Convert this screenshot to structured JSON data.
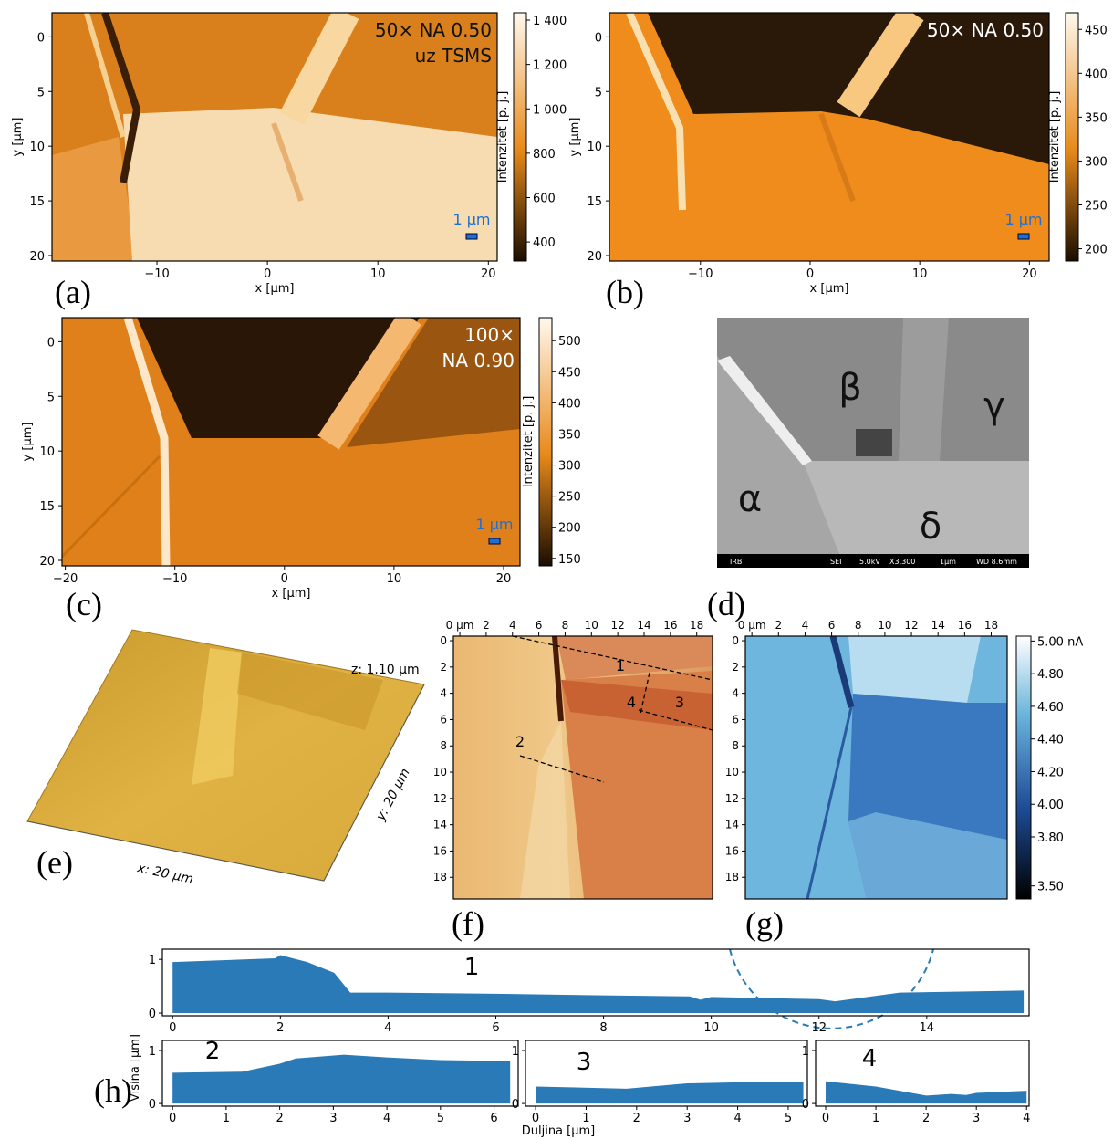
{
  "chart_data": [
    {
      "type": "heatmap",
      "panel": "(a)",
      "xlabel": "x [µm]",
      "ylabel": "y [µm]",
      "colorbar_label": "Intenzitet [p. j.]",
      "annotations": [
        "50× NA 0.50",
        "uz TSMS"
      ],
      "scale_bar": "1 µm",
      "xlim": [
        -19.5,
        20.8
      ],
      "ylim": [
        -2.2,
        20.5
      ],
      "xticks": [
        {
          "value": -10,
          "label": "−10"
        },
        0,
        10,
        20
      ],
      "yticks": [
        0,
        5,
        10,
        15,
        20
      ],
      "clim": [
        314,
        1433
      ],
      "cticks": [
        {
          "value": 1400,
          "label": "1 400"
        },
        {
          "value": 1200,
          "label": "1 200"
        },
        {
          "value": 1000,
          "label": "1 000"
        },
        800,
        600,
        400
      ]
    },
    {
      "type": "heatmap",
      "panel": "(b)",
      "xlabel": "x [µm]",
      "ylabel": "y [µm]",
      "colorbar_label": "Intenzitet [p. j.]",
      "annotations": [
        "50× NA 0.50"
      ],
      "scale_bar": "1 µm",
      "xlim": [
        -18.3,
        21.8
      ],
      "ylim": [
        -2.2,
        20.5
      ],
      "xticks": [
        {
          "value": -10,
          "label": "−10"
        },
        0,
        10,
        20
      ],
      "yticks": [
        0,
        5,
        10,
        15,
        20
      ],
      "clim": [
        186,
        469
      ],
      "cticks": [
        450,
        400,
        350,
        300,
        250,
        200
      ]
    },
    {
      "type": "heatmap",
      "panel": "(c)",
      "xlabel": "x [µm]",
      "ylabel": "y [µm]",
      "colorbar_label": "Intenzitet [p. j.]",
      "annotations": [
        "100×",
        "NA 0.90"
      ],
      "scale_bar": "1 µm",
      "xlim": [
        -20.3,
        21.5
      ],
      "ylim": [
        -2.2,
        20.5
      ],
      "xticks": [
        {
          "value": -20,
          "label": "−20"
        },
        {
          "value": -10,
          "label": "−10"
        },
        0,
        10,
        20
      ],
      "yticks": [
        0,
        5,
        10,
        15,
        20
      ],
      "clim": [
        138,
        537
      ],
      "cticks": [
        500,
        450,
        400,
        350,
        300,
        250,
        200,
        150
      ]
    },
    {
      "type": "image",
      "panel": "(d)",
      "labels": [
        "α",
        "β",
        "γ",
        "δ"
      ],
      "footer": [
        "IRB",
        "SEI",
        "5.0kV",
        "X3,300",
        "1µm",
        "WD 8.6mm"
      ]
    },
    {
      "type": "surface3d",
      "panel": "(e)",
      "zlabel": "z: 1.10 µm",
      "xlabel": "x: 20 µm",
      "ylabel": "y: 20 µm"
    },
    {
      "type": "map",
      "panel": "(f)",
      "xlim": [
        -0.49,
        19.2
      ],
      "ylim": [
        -0.35,
        19.65
      ],
      "xticks": [
        {
          "value": 0,
          "label": "0 µm"
        },
        2,
        4,
        6,
        8,
        10,
        12,
        14,
        16,
        18
      ],
      "yticks": [
        0,
        2,
        4,
        6,
        8,
        10,
        12,
        14,
        16,
        18
      ],
      "annotations": [
        "1",
        "2",
        "3",
        "4"
      ]
    },
    {
      "type": "map",
      "panel": "(g)",
      "xlim": [
        -0.49,
        19.2
      ],
      "ylim": [
        -0.35,
        19.65
      ],
      "xticks": [
        {
          "value": 0,
          "label": "0 µm"
        },
        2,
        4,
        6,
        8,
        10,
        12,
        14,
        16,
        18
      ],
      "yticks": [
        0,
        2,
        4,
        6,
        8,
        10,
        12,
        14,
        16,
        18
      ],
      "clim": [
        3.42,
        5.03
      ],
      "cticks": [
        {
          "value": 5,
          "label": "5.00 nA"
        },
        {
          "value": 4.8,
          "label": "4.80"
        },
        {
          "value": 4.6,
          "label": "4.60"
        },
        {
          "value": 4.4,
          "label": "4.40"
        },
        {
          "value": 4.2,
          "label": "4.20"
        },
        {
          "value": 4,
          "label": "4.00"
        },
        {
          "value": 3.8,
          "label": "3.80"
        },
        {
          "value": 3.5,
          "label": "3.50"
        }
      ]
    },
    {
      "type": "area",
      "panel": "(h)",
      "label": "1",
      "ylabel": "Visina [µm]",
      "xlabel": "Duljina [µm]",
      "color": "#2a7ab8",
      "xlim": [
        -0.19,
        15.9
      ],
      "ylim": [
        -0.05,
        1.19
      ],
      "xticks": [
        0,
        2,
        4,
        6,
        8,
        10,
        12,
        14
      ],
      "yticks": [
        0,
        1
      ],
      "x": [
        0,
        1.9,
        2.0,
        2.5,
        3.0,
        3.3,
        4,
        6,
        8,
        9.6,
        9.8,
        10,
        12,
        12.3,
        13.5,
        15.8
      ],
      "values": [
        0.95,
        1.02,
        1.08,
        0.95,
        0.75,
        0.38,
        0.38,
        0.36,
        0.33,
        0.31,
        0.25,
        0.3,
        0.26,
        0.22,
        0.38,
        0.42
      ]
    },
    {
      "type": "area",
      "label": "2",
      "color": "#2a7ab8",
      "xlim": [
        -0.19,
        6.45
      ],
      "ylim": [
        -0.05,
        1.19
      ],
      "xticks": [
        0,
        1,
        2,
        3,
        4,
        5,
        6
      ],
      "yticks": [
        0,
        1
      ],
      "x": [
        0,
        1.3,
        2,
        2.3,
        3.2,
        4,
        5,
        6.3
      ],
      "values": [
        0.58,
        0.6,
        0.75,
        0.85,
        0.92,
        0.87,
        0.82,
        0.8
      ]
    },
    {
      "type": "area",
      "label": "3",
      "color": "#2a7ab8",
      "xlim": [
        -0.2,
        5.38
      ],
      "ylim": [
        -0.05,
        1.19
      ],
      "xticks": [
        0,
        1,
        2,
        3,
        4,
        5
      ],
      "yticks": [
        0,
        1
      ],
      "x": [
        0,
        1.8,
        3,
        4,
        5.3
      ],
      "values": [
        0.32,
        0.28,
        0.38,
        0.4,
        0.4
      ]
    },
    {
      "type": "area",
      "label": "4",
      "color": "#2a7ab8",
      "xlim": [
        -0.2,
        4.05
      ],
      "ylim": [
        -0.05,
        1.19
      ],
      "xticks": [
        0,
        1,
        2,
        3,
        4
      ],
      "yticks": [
        0,
        1
      ],
      "x": [
        0,
        1,
        2,
        2.5,
        2.8,
        3,
        4
      ],
      "values": [
        0.42,
        0.32,
        0.15,
        0.18,
        0.16,
        0.2,
        0.24
      ]
    }
  ]
}
